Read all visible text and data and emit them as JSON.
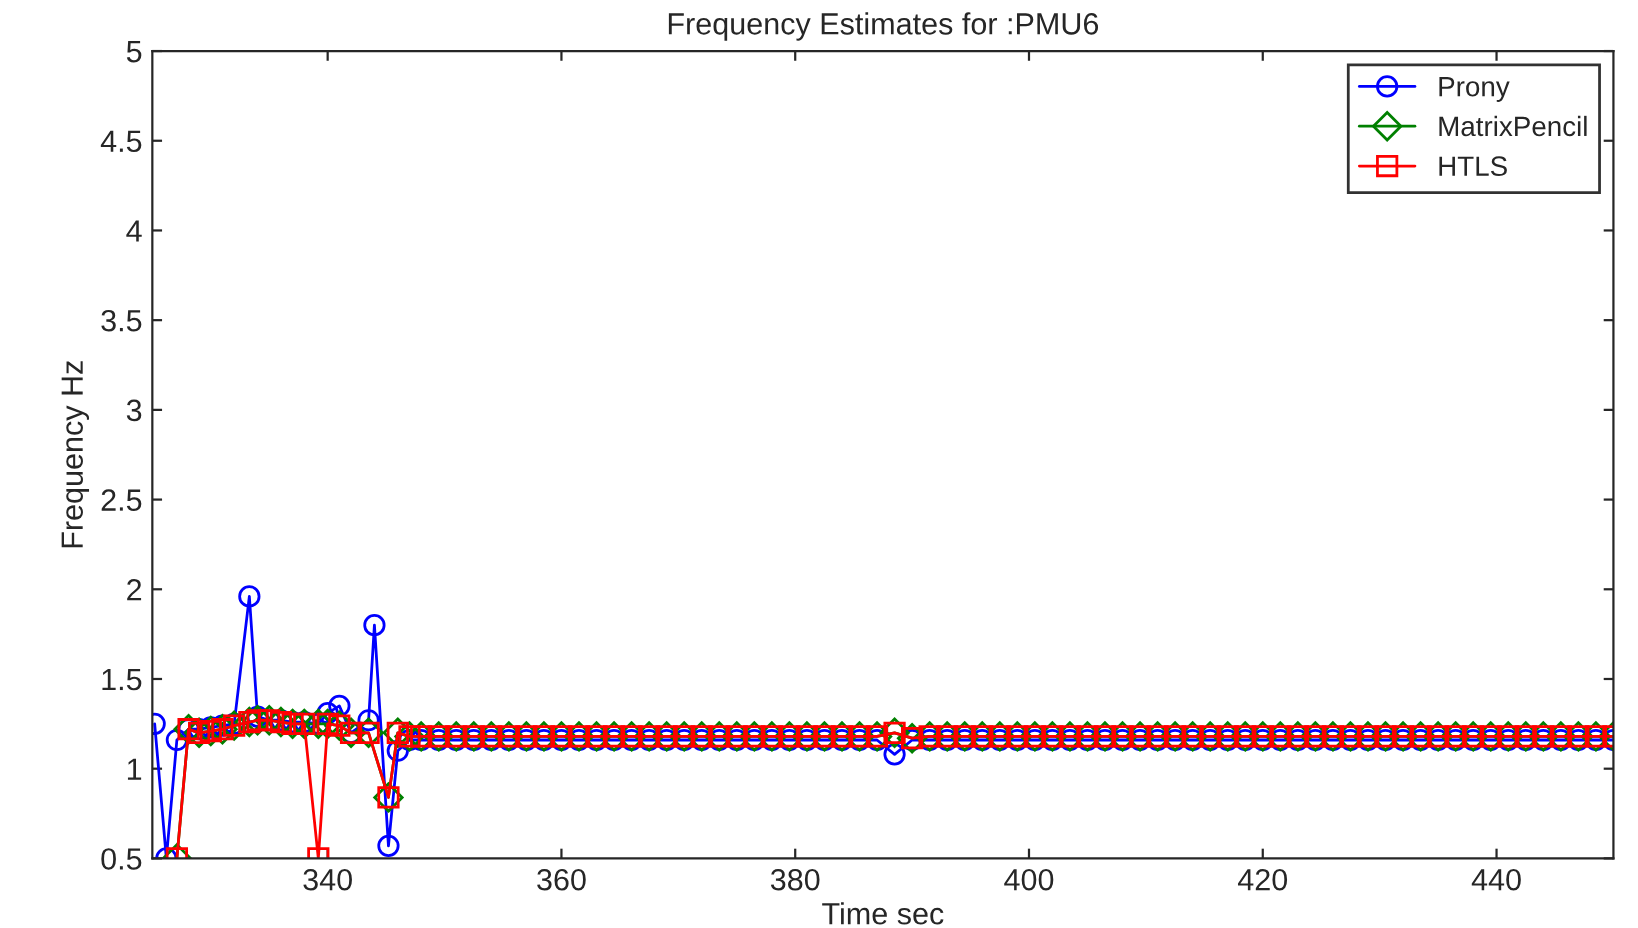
{
  "chart_data": {
    "type": "line",
    "title": "Frequency Estimates for :PMU6",
    "xlabel": "Time sec",
    "ylabel": "Frequency Hz",
    "x": [
      325.2,
      326.2,
      327.1,
      328.1,
      329,
      330,
      331,
      332,
      333.3,
      334,
      335,
      336,
      337,
      338,
      339.2,
      340,
      341,
      342,
      343.5,
      344,
      345.2,
      346,
      347,
      348,
      349.5,
      351,
      352.5,
      354,
      355.5,
      357,
      358.5,
      360,
      361.5,
      363,
      364.5,
      366,
      367.5,
      369,
      370.5,
      372,
      373.5,
      375,
      376.5,
      378,
      379.5,
      381,
      382.5,
      384,
      385.5,
      387,
      388.5,
      390,
      391.5,
      393,
      394.5,
      396,
      397.5,
      399,
      400.5,
      402,
      403.5,
      405,
      406.5,
      408,
      409.5,
      411,
      412.5,
      414,
      415.5,
      417,
      418.5,
      420,
      421.5,
      423,
      424.5,
      426,
      427.5,
      429,
      430.5,
      432,
      433.5,
      435,
      436.5,
      438,
      439.5,
      441,
      442.5,
      444,
      445.5,
      447,
      448.5,
      450
    ],
    "series": [
      {
        "name": "Prony",
        "color": "#0000ff",
        "marker": "circle",
        "values": [
          1.25,
          0.5,
          1.16,
          1.22,
          1.22,
          1.23,
          1.24,
          1.25,
          1.96,
          1.29,
          1.27,
          1.27,
          1.26,
          1.26,
          1.25,
          1.31,
          1.35,
          1.2,
          1.27,
          1.8,
          0.57,
          1.1,
          1.16,
          1.16,
          1.16,
          1.16,
          1.16,
          1.16,
          1.16,
          1.16,
          1.16,
          1.16,
          1.16,
          1.16,
          1.16,
          1.16,
          1.16,
          1.16,
          1.16,
          1.16,
          1.16,
          1.16,
          1.16,
          1.16,
          1.16,
          1.16,
          1.16,
          1.16,
          1.16,
          1.16,
          1.08,
          1.16,
          1.16,
          1.16,
          1.16,
          1.16,
          1.16,
          1.16,
          1.16,
          1.16,
          1.16,
          1.16,
          1.16,
          1.16,
          1.16,
          1.16,
          1.16,
          1.16,
          1.16,
          1.16,
          1.16,
          1.16,
          1.16,
          1.16,
          1.16,
          1.16,
          1.16,
          1.16,
          1.16,
          1.16,
          1.16,
          1.16,
          1.16,
          1.16,
          1.16,
          1.16,
          1.16,
          1.16,
          1.16,
          1.16,
          1.16,
          1.16
        ]
      },
      {
        "name": "MatrixPencil",
        "color": "#008000",
        "marker": "diamond",
        "values": [
          null,
          null,
          0.5,
          1.22,
          1.2,
          1.21,
          1.22,
          1.24,
          1.26,
          1.27,
          1.27,
          1.26,
          1.25,
          1.25,
          1.25,
          1.25,
          1.24,
          1.2,
          1.2,
          null,
          0.84,
          1.2,
          1.18,
          1.18,
          1.18,
          1.18,
          1.18,
          1.18,
          1.18,
          1.18,
          1.18,
          1.18,
          1.18,
          1.18,
          1.18,
          1.18,
          1.18,
          1.18,
          1.18,
          1.18,
          1.18,
          1.18,
          1.18,
          1.18,
          1.18,
          1.18,
          1.18,
          1.18,
          1.18,
          1.18,
          1.2,
          1.17,
          1.18,
          1.18,
          1.18,
          1.18,
          1.18,
          1.18,
          1.18,
          1.18,
          1.18,
          1.18,
          1.18,
          1.18,
          1.18,
          1.18,
          1.18,
          1.18,
          1.18,
          1.18,
          1.18,
          1.18,
          1.18,
          1.18,
          1.18,
          1.18,
          1.18,
          1.18,
          1.18,
          1.18,
          1.18,
          1.18,
          1.18,
          1.18,
          1.18,
          1.18,
          1.18,
          1.18,
          1.18,
          1.18,
          1.18,
          1.18
        ]
      },
      {
        "name": "HTLS",
        "color": "#ff0000",
        "marker": "square",
        "values": [
          null,
          null,
          0.5,
          1.22,
          1.2,
          1.21,
          1.22,
          1.24,
          1.26,
          1.27,
          1.27,
          1.26,
          1.25,
          1.25,
          0.5,
          1.25,
          1.24,
          1.2,
          1.2,
          null,
          0.84,
          1.2,
          1.18,
          1.18,
          1.18,
          1.18,
          1.18,
          1.18,
          1.18,
          1.18,
          1.18,
          1.18,
          1.18,
          1.18,
          1.18,
          1.18,
          1.18,
          1.18,
          1.18,
          1.18,
          1.18,
          1.18,
          1.18,
          1.18,
          1.18,
          1.18,
          1.18,
          1.18,
          1.18,
          1.18,
          1.2,
          1.17,
          1.18,
          1.18,
          1.18,
          1.18,
          1.18,
          1.18,
          1.18,
          1.18,
          1.18,
          1.18,
          1.18,
          1.18,
          1.18,
          1.18,
          1.18,
          1.18,
          1.18,
          1.18,
          1.18,
          1.18,
          1.18,
          1.18,
          1.18,
          1.18,
          1.18,
          1.18,
          1.18,
          1.18,
          1.18,
          1.18,
          1.18,
          1.18,
          1.18,
          1.18,
          1.18,
          1.18,
          1.18,
          1.18,
          1.18,
          1.18
        ]
      }
    ],
    "xlim": [
      325,
      450
    ],
    "xticks": [
      340,
      360,
      380,
      400,
      420,
      440
    ],
    "ylim": [
      0.5,
      5
    ],
    "yticks": [
      0.5,
      1,
      1.5,
      2,
      2.5,
      3,
      3.5,
      4,
      4.5,
      5
    ],
    "grid": false,
    "legend": "top right",
    "line_style": "solid"
  }
}
